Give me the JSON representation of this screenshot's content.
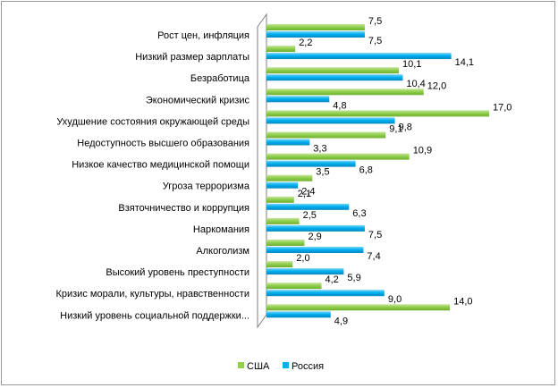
{
  "chart_data": {
    "type": "bar",
    "orientation": "horizontal",
    "categories": [
      "Рост цен, инфляция",
      "Низкий размер зарплаты",
      "Безработица",
      "Экономический  кризис",
      "Ухудшение  состояния окружающей среды",
      "Недоступность высшего образования",
      "Низкое качество медицинской  помощи",
      "Угроза терроризма",
      "Взяточничество  и коррупция",
      "Наркомания",
      "Алкоголизм",
      "Высокий уровень  преступности",
      "Кризис морали, культуры, нравственности",
      "Низкий уровень социальной поддержки..."
    ],
    "series": [
      {
        "name": "США",
        "color": "#92d050",
        "values": [
          7.5,
          2.2,
          10.1,
          12.0,
          17.0,
          9.1,
          10.9,
          3.5,
          2.1,
          2.5,
          2.9,
          2.0,
          4.2,
          14.0
        ],
        "labels": [
          "7,5",
          "2,2",
          "10,1",
          "12,0",
          "17,0",
          "9,1",
          "10,9",
          "3,5",
          "2,1",
          "2,5",
          "2,9",
          "2,0",
          "4,2",
          "14,0"
        ]
      },
      {
        "name": "Россия",
        "color": "#00b0f0",
        "values": [
          7.5,
          14.1,
          10.4,
          4.8,
          9.8,
          3.3,
          6.8,
          2.4,
          6.3,
          7.5,
          7.4,
          5.9,
          9.0,
          4.9
        ],
        "labels": [
          "7,5",
          "14,1",
          "10,4",
          "4,8",
          "9,8",
          "3,3",
          "6,8",
          "2,4",
          "6,3",
          "7,5",
          "7,4",
          "5,9",
          "9,0",
          "4,9"
        ]
      }
    ],
    "xlim": [
      0,
      18
    ],
    "grid": false,
    "legend_position": "bottom",
    "axis_style": "3d-wall"
  }
}
